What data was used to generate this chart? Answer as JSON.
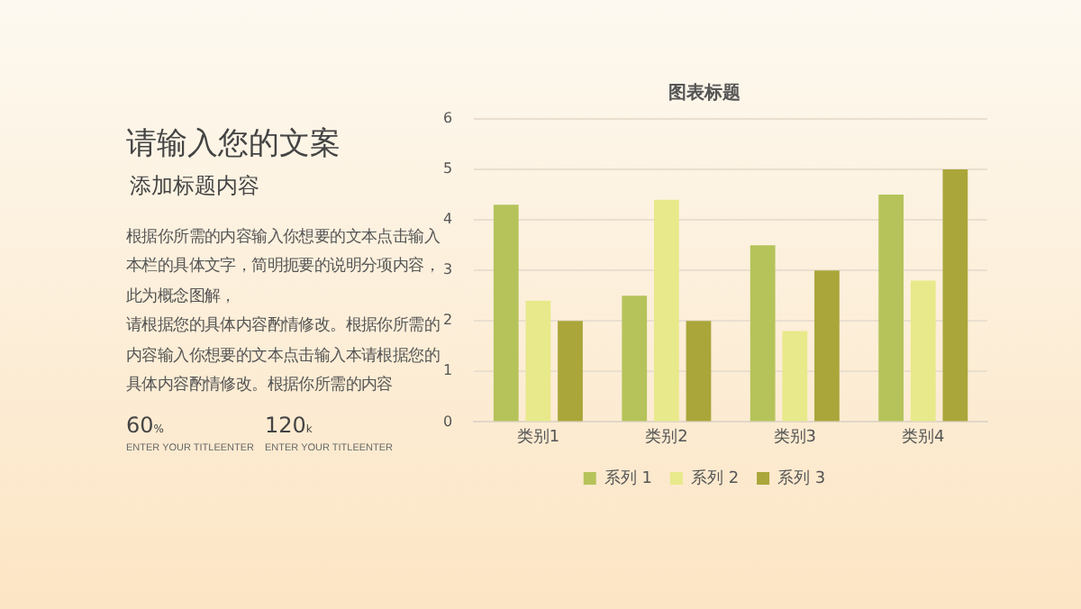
{
  "chart_data": {
    "type": "bar",
    "title": "图表标题",
    "categories": [
      "类别1",
      "类别2",
      "类别3",
      "类别4"
    ],
    "series": [
      {
        "name": "系列 1",
        "color": "#b5c35a",
        "values": [
          4.3,
          2.5,
          3.5,
          4.5
        ]
      },
      {
        "name": "系列 2",
        "color": "#e8e98a",
        "values": [
          2.4,
          4.4,
          1.8,
          2.8
        ]
      },
      {
        "name": "系列 3",
        "color": "#aaa63a",
        "values": [
          2,
          2,
          3,
          5
        ]
      }
    ],
    "ylim": [
      0,
      6
    ],
    "yticks": [
      0,
      1,
      2,
      3,
      4,
      5,
      6
    ],
    "grid": "y",
    "legend": "bottom",
    "annotations": [
      "请输入您的文案",
      "添加标题内容",
      "根据你所需的内容输入你想要的文本点击输入本栏的具体文字，简明扼要的说明分项内容，此为概念图解，",
      "请根据您的具体内容酌情修改。根据你所需的内容输入你想要的文本点击输入本请根据您的具体内容酌情修改。根据你所需的内容",
      "60%",
      "ENTER YOUR TITLEENTER",
      "120k",
      "ENTER YOUR TITLEENTER"
    ]
  }
}
